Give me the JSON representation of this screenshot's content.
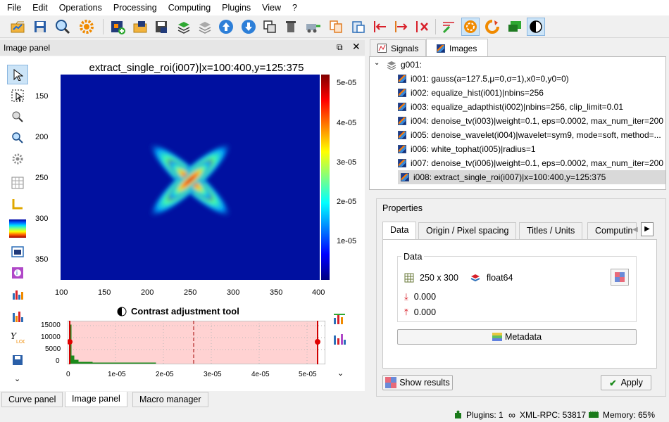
{
  "menu": [
    "File",
    "Edit",
    "Operations",
    "Processing",
    "Computing",
    "Plugins",
    "View",
    "?"
  ],
  "toolbar_icons": [
    "new-signal-icon",
    "open-icon",
    "save-icon",
    "zoom-icon",
    "settings-icon",
    "new-image-icon",
    "open-image-icon",
    "save-image-icon",
    "stack-icon",
    "layers-icon",
    "arrow-up-icon",
    "arrow-down-icon",
    "duplicate-icon",
    "delete-icon",
    "move-icon",
    "copy-icon",
    "paste-icon",
    "cut-left-icon",
    "cut-right-icon",
    "remove-icon",
    "edit-icon",
    "roi-icon",
    "processing-icon",
    "comment-icon",
    "contrast-icon"
  ],
  "image_panel": {
    "title": "Image panel",
    "plot_title": "extract_single_roi(i007)|x=100:400,y=125:375",
    "x_ticks": [
      "100",
      "150",
      "200",
      "250",
      "300",
      "350",
      "400"
    ],
    "y_ticks": [
      "150",
      "200",
      "250",
      "300",
      "350"
    ],
    "colorbar_ticks": [
      "5e-05",
      "4e-05",
      "3e-05",
      "2e-05",
      "1e-05"
    ],
    "contrast_title": "Contrast adjustment tool",
    "hist_y_ticks": [
      "15000",
      "10000",
      "5000",
      "0"
    ],
    "hist_x_ticks": [
      "0",
      "1e-05",
      "2e-05",
      "3e-05",
      "4e-05",
      "5e-05"
    ]
  },
  "bottom_tabs": [
    "Curve panel",
    "Image panel",
    "Macro manager"
  ],
  "right_tabs": {
    "signals": "Signals",
    "images": "Images"
  },
  "tree": {
    "group": "g001:",
    "items": [
      "i001: gauss(a=127.5,μ=0,σ=1),x0=0,y0=0)",
      "i002: equalize_hist(i001)|nbins=256",
      "i003: equalize_adapthist(i002)|nbins=256, clip_limit=0.01",
      "i004: denoise_tv(i003)|weight=0.1, eps=0.0002, max_num_iter=200",
      "i005: denoise_wavelet(i004)|wavelet=sym9, mode=soft, method=...",
      "i006: white_tophat(i005)|radius=1",
      "i007: denoise_tv(i006)|weight=0.1, eps=0.0002, max_num_iter=200",
      "i008: extract_single_roi(i007)|x=100:400,y=125:375"
    ]
  },
  "properties": {
    "title": "Properties",
    "tabs": [
      "Data",
      "Origin / Pixel spacing",
      "Titles / Units",
      "Computin"
    ],
    "data_group": "Data",
    "size": "250 x 300",
    "dtype": "float64",
    "min": "0.000",
    "max": "0.000",
    "metadata_btn": "Metadata",
    "show_results": "Show results",
    "apply": "Apply"
  },
  "status": {
    "plugins": "Plugins: 1",
    "xmlrpc": "XML-RPC: 53817",
    "memory": "Memory: 65%"
  },
  "colors": {
    "accent": "#0078d7",
    "selected_row": "#d9d9d9",
    "hist_range": "#ffd2d2"
  }
}
